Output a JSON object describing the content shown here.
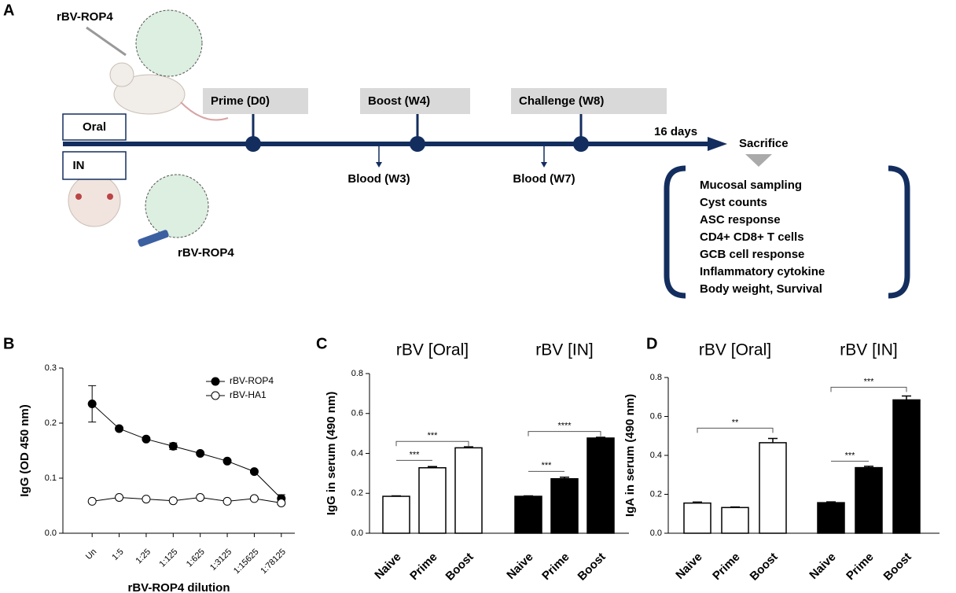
{
  "panel_a": {
    "label": "A",
    "vector_top": "rBV-ROP4",
    "vector_bottom": "rBV-ROP4",
    "routes": [
      "Oral",
      "IN"
    ],
    "events": [
      "Prime (D0)",
      "Boost (W4)",
      "Challenge (W8)"
    ],
    "bloods": [
      "Blood (W3)",
      "Blood (W7)"
    ],
    "interval": "16 days",
    "endpoint": "Sacrifice",
    "readouts": [
      "Mucosal sampling",
      "Cyst counts",
      "ASC response",
      "CD4+ CD8+ T cells",
      "GCB cell response",
      "Inflammatory cytokine",
      "Body weight, Survival"
    ]
  },
  "chart_data": [
    {
      "type": "line",
      "label": "B",
      "ylabel": "IgG (OD 450 nm)",
      "xlabel": "rBV-ROP4 dilution",
      "categories": [
        "Un",
        "1:5",
        "1:25",
        "1:125",
        "1:625",
        "1:3125",
        "1:15625",
        "1:78125"
      ],
      "ylim": [
        0,
        0.3
      ],
      "yticks": [
        {
          "value": 0,
          "label": "0.0"
        },
        0.1,
        0.2,
        0.3
      ],
      "legend": "top-right",
      "series": [
        {
          "name": "rBV-ROP4",
          "color": "#000000",
          "filled": true,
          "values": [
            0.235,
            0.19,
            0.171,
            0.158,
            0.145,
            0.131,
            0.112,
            0.063
          ],
          "errors": [
            0.033,
            0.003,
            0.003,
            0.006,
            0.003,
            0.003,
            0.003,
            0.007
          ]
        },
        {
          "name": "rBV-HA1",
          "color": "#000000",
          "filled": false,
          "values": [
            0.058,
            0.065,
            0.062,
            0.059,
            0.065,
            0.058,
            0.063,
            0.055
          ],
          "errors": [
            0.002,
            0.002,
            0.002,
            0.002,
            0.002,
            0.002,
            0.003,
            0.003
          ]
        }
      ]
    },
    {
      "type": "bar",
      "label": "C",
      "ylabel": "IgG in serum (490 nm)",
      "ylim": [
        0,
        0.8
      ],
      "yticks": [
        {
          "value": 0,
          "label": "0.0"
        },
        0.2,
        0.4,
        0.6,
        0.8
      ],
      "groups": [
        {
          "title": "rBV [Oral]",
          "color": "#ffffff",
          "categories": [
            "Naive",
            "Prime",
            "Boost"
          ],
          "values": [
            0.185,
            0.328,
            0.428
          ],
          "errors": [
            0.002,
            0.006,
            0.005
          ],
          "brackets": [
            {
              "label": "***",
              "from": 0,
              "to": 1,
              "level": 0.365
            },
            {
              "label": "***",
              "from": 0,
              "to": 2,
              "level": 0.46
            }
          ]
        },
        {
          "title": "rBV [IN]",
          "color": "#000000",
          "categories": [
            "Naive",
            "Prime",
            "Boost"
          ],
          "values": [
            0.185,
            0.273,
            0.477
          ],
          "errors": [
            0.002,
            0.008,
            0.004
          ],
          "brackets": [
            {
              "label": "***",
              "from": 0,
              "to": 1,
              "level": 0.31
            },
            {
              "label": "****",
              "from": 0,
              "to": 2,
              "level": 0.51
            }
          ]
        }
      ]
    },
    {
      "type": "bar",
      "label": "D",
      "ylabel": "IgA in serum (490 nm)",
      "ylim": [
        0,
        0.8
      ],
      "yticks": [
        {
          "value": 0,
          "label": "0.0"
        },
        0.2,
        0.4,
        0.6,
        0.8
      ],
      "groups": [
        {
          "title": "rBV [Oral]",
          "color": "#ffffff",
          "categories": [
            "Naive",
            "Prime",
            "Boost"
          ],
          "values": [
            0.155,
            0.132,
            0.465
          ],
          "errors": [
            0.005,
            0.003,
            0.022
          ],
          "brackets": [
            {
              "label": "**",
              "from": 0,
              "to": 2,
              "level": 0.54
            }
          ]
        },
        {
          "title": "rBV [IN]",
          "color": "#000000",
          "categories": [
            "Naive",
            "Prime",
            "Boost"
          ],
          "values": [
            0.157,
            0.337,
            0.685
          ],
          "errors": [
            0.004,
            0.007,
            0.02
          ],
          "brackets": [
            {
              "label": "***",
              "from": 0,
              "to": 1,
              "level": 0.37
            },
            {
              "label": "***",
              "from": 0,
              "to": 2,
              "level": 0.75
            }
          ]
        }
      ]
    }
  ]
}
